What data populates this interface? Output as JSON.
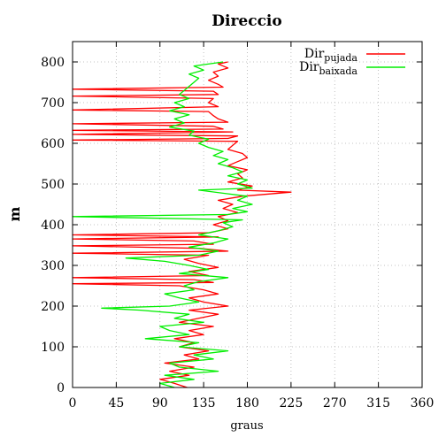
{
  "chart_data": {
    "type": "line",
    "title": "Direccio",
    "xlabel": "graus",
    "ylabel": "m",
    "xlim": [
      0,
      360
    ],
    "ylim": [
      0,
      850
    ],
    "xticks": [
      "0",
      "45",
      "90",
      "135",
      "180",
      "225",
      "270",
      "315",
      "360"
    ],
    "yticks": [
      "0",
      "100",
      "200",
      "300",
      "400",
      "500",
      "600",
      "700",
      "800"
    ],
    "grid": true,
    "legend_position": "top-right",
    "series": [
      {
        "name_main": "Dir",
        "name_sub": "pujada",
        "color": "#ff0000",
        "points": [
          [
            118,
            0
          ],
          [
            105,
            10
          ],
          [
            90,
            20
          ],
          [
            120,
            30
          ],
          [
            100,
            40
          ],
          [
            125,
            50
          ],
          [
            95,
            60
          ],
          [
            130,
            70
          ],
          [
            115,
            80
          ],
          [
            140,
            90
          ],
          [
            110,
            100
          ],
          [
            125,
            110
          ],
          [
            105,
            120
          ],
          [
            135,
            130
          ],
          [
            120,
            140
          ],
          [
            145,
            150
          ],
          [
            110,
            160
          ],
          [
            130,
            170
          ],
          [
            150,
            180
          ],
          [
            120,
            190
          ],
          [
            160,
            200
          ],
          [
            135,
            210
          ],
          [
            120,
            220
          ],
          [
            150,
            230
          ],
          [
            135,
            240
          ],
          [
            110,
            250
          ],
          [
            0,
            255
          ],
          [
            145,
            258
          ],
          [
            125,
            265
          ],
          [
            0,
            270
          ],
          [
            140,
            275
          ],
          [
            120,
            285
          ],
          [
            150,
            295
          ],
          [
            130,
            305
          ],
          [
            115,
            315
          ],
          [
            140,
            325
          ],
          [
            0,
            330
          ],
          [
            160,
            335
          ],
          [
            130,
            342
          ],
          [
            0,
            348
          ],
          [
            145,
            352
          ],
          [
            125,
            360
          ],
          [
            0,
            365
          ],
          [
            150,
            370
          ],
          [
            0,
            375
          ],
          [
            140,
            380
          ],
          [
            160,
            390
          ],
          [
            145,
            400
          ],
          [
            160,
            410
          ],
          [
            150,
            420
          ],
          [
            170,
            430
          ],
          [
            155,
            440
          ],
          [
            165,
            450
          ],
          [
            150,
            460
          ],
          [
            175,
            470
          ],
          [
            225,
            480
          ],
          [
            170,
            485
          ],
          [
            185,
            495
          ],
          [
            160,
            505
          ],
          [
            175,
            515
          ],
          [
            170,
            525
          ],
          [
            180,
            535
          ],
          [
            160,
            545
          ],
          [
            170,
            555
          ],
          [
            180,
            565
          ],
          [
            175,
            575
          ],
          [
            160,
            585
          ],
          [
            165,
            595
          ],
          [
            170,
            605
          ],
          [
            0,
            608
          ],
          [
            160,
            612
          ],
          [
            170,
            618
          ],
          [
            0,
            622
          ],
          [
            165,
            628
          ],
          [
            0,
            632
          ],
          [
            155,
            635
          ],
          [
            145,
            642
          ],
          [
            0,
            648
          ],
          [
            160,
            652
          ],
          [
            150,
            660
          ],
          [
            145,
            668
          ],
          [
            140,
            678
          ],
          [
            0,
            682
          ],
          [
            150,
            690
          ],
          [
            140,
            700
          ],
          [
            145,
            710
          ],
          [
            0,
            716
          ],
          [
            150,
            720
          ],
          [
            145,
            728
          ],
          [
            0,
            733
          ],
          [
            155,
            738
          ],
          [
            150,
            745
          ],
          [
            140,
            755
          ],
          [
            150,
            765
          ],
          [
            145,
            775
          ],
          [
            160,
            785
          ],
          [
            150,
            795
          ],
          [
            160,
            800
          ]
        ]
      },
      {
        "name_main": "Dir",
        "name_sub": "baixada",
        "color": "#00ee00",
        "points": [
          [
            105,
            0
          ],
          [
            90,
            10
          ],
          [
            125,
            20
          ],
          [
            95,
            30
          ],
          [
            150,
            40
          ],
          [
            110,
            50
          ],
          [
            100,
            60
          ],
          [
            145,
            70
          ],
          [
            125,
            80
          ],
          [
            160,
            90
          ],
          [
            110,
            100
          ],
          [
            130,
            110
          ],
          [
            75,
            120
          ],
          [
            120,
            130
          ],
          [
            100,
            140
          ],
          [
            90,
            150
          ],
          [
            135,
            160
          ],
          [
            105,
            170
          ],
          [
            120,
            180
          ],
          [
            70,
            190
          ],
          [
            30,
            195
          ],
          [
            100,
            200
          ],
          [
            130,
            210
          ],
          [
            110,
            220
          ],
          [
            95,
            230
          ],
          [
            125,
            240
          ],
          [
            115,
            250
          ],
          [
            130,
            260
          ],
          [
            160,
            270
          ],
          [
            110,
            280
          ],
          [
            140,
            290
          ],
          [
            120,
            300
          ],
          [
            95,
            310
          ],
          [
            55,
            318
          ],
          [
            130,
            325
          ],
          [
            150,
            335
          ],
          [
            120,
            345
          ],
          [
            145,
            355
          ],
          [
            160,
            365
          ],
          [
            130,
            375
          ],
          [
            150,
            385
          ],
          [
            165,
            395
          ],
          [
            155,
            405
          ],
          [
            175,
            412
          ],
          [
            0,
            420
          ],
          [
            160,
            425
          ],
          [
            180,
            432
          ],
          [
            165,
            440
          ],
          [
            185,
            450
          ],
          [
            170,
            460
          ],
          [
            180,
            470
          ],
          [
            130,
            485
          ],
          [
            185,
            490
          ],
          [
            170,
            500
          ],
          [
            180,
            510
          ],
          [
            160,
            520
          ],
          [
            175,
            530
          ],
          [
            165,
            540
          ],
          [
            150,
            550
          ],
          [
            160,
            560
          ],
          [
            145,
            570
          ],
          [
            155,
            580
          ],
          [
            140,
            590
          ],
          [
            130,
            600
          ],
          [
            140,
            610
          ],
          [
            120,
            620
          ],
          [
            125,
            630
          ],
          [
            100,
            640
          ],
          [
            115,
            650
          ],
          [
            105,
            660
          ],
          [
            120,
            670
          ],
          [
            100,
            680
          ],
          [
            115,
            690
          ],
          [
            105,
            700
          ],
          [
            120,
            710
          ],
          [
            110,
            720
          ],
          [
            115,
            730
          ],
          [
            120,
            740
          ],
          [
            125,
            750
          ],
          [
            130,
            760
          ],
          [
            120,
            770
          ],
          [
            135,
            780
          ],
          [
            125,
            790
          ],
          [
            155,
            800
          ]
        ]
      }
    ]
  }
}
